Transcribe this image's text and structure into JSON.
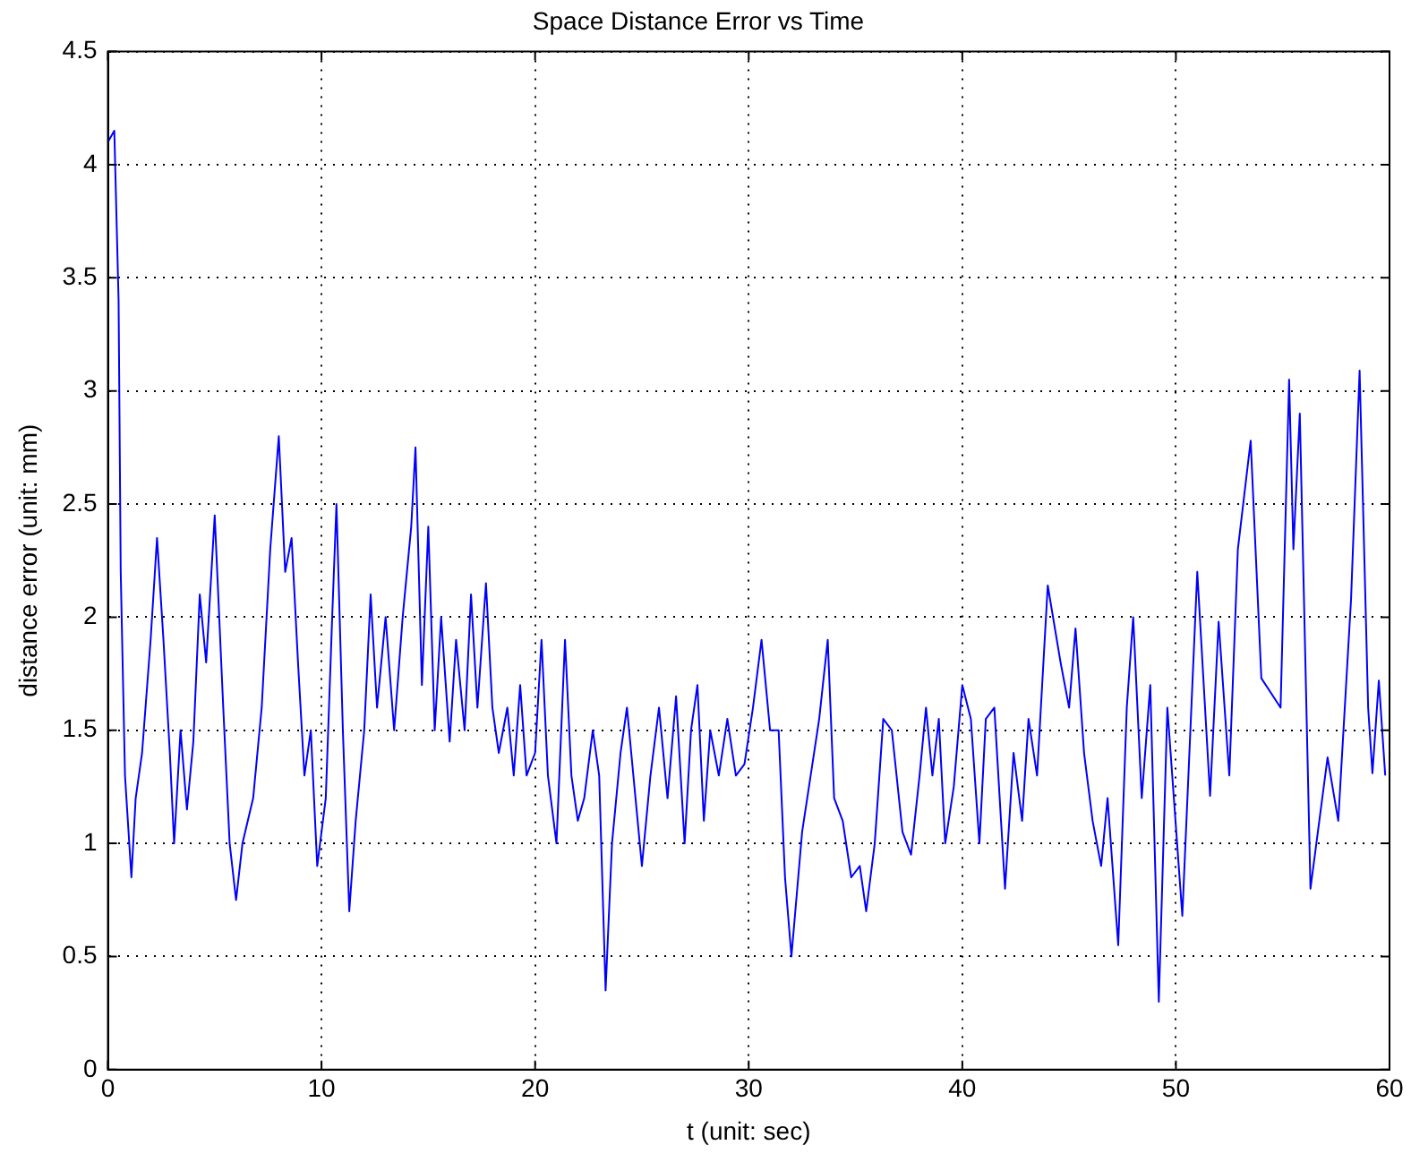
{
  "chart_data": {
    "type": "line",
    "title": "Space Distance Error vs Time",
    "xlabel": "t (unit: sec)",
    "ylabel": "distance error (unit: mm)",
    "xlim": [
      0,
      60
    ],
    "xticks": [
      0,
      10,
      20,
      30,
      40,
      50,
      60
    ],
    "ylim": [
      0,
      4.5
    ],
    "yticks": [
      0,
      0.5,
      1,
      1.5,
      2,
      2.5,
      3,
      3.5,
      4,
      4.5
    ],
    "grid": true,
    "marker": "none",
    "line_style": "solid",
    "series": [
      {
        "color": "#0000ff",
        "x": [
          0,
          0.3,
          0.5,
          0.6,
          0.8,
          1.1,
          1.3,
          1.6,
          2.0,
          2.3,
          2.6,
          2.9,
          3.1,
          3.4,
          3.7,
          4.0,
          4.3,
          4.6,
          5.0,
          5.4,
          5.7,
          6.0,
          6.3,
          6.8,
          7.2,
          7.6,
          8.0,
          8.3,
          8.6,
          8.9,
          9.2,
          9.5,
          9.8,
          10.2,
          10.5,
          10.7,
          11.0,
          11.3,
          11.6,
          12.0,
          12.3,
          12.6,
          13.0,
          13.4,
          13.8,
          14.2,
          14.4,
          14.7,
          15.0,
          15.3,
          15.6,
          16.0,
          16.3,
          16.7,
          17.0,
          17.3,
          17.7,
          18.0,
          18.3,
          18.7,
          19.0,
          19.3,
          19.6,
          20.0,
          20.3,
          20.6,
          21.0,
          21.4,
          21.7,
          22.0,
          22.3,
          22.7,
          23.0,
          23.3,
          23.6,
          24.0,
          24.3,
          24.6,
          25.0,
          25.4,
          25.8,
          26.2,
          26.6,
          27.0,
          27.3,
          27.6,
          27.9,
          28.2,
          28.6,
          29.0,
          29.4,
          29.8,
          30.2,
          30.6,
          31.0,
          31.4,
          31.7,
          32.0,
          32.5,
          32.9,
          33.3,
          33.7,
          34.0,
          34.4,
          34.8,
          35.2,
          35.5,
          35.9,
          36.3,
          36.7,
          37.2,
          37.6,
          38.0,
          38.3,
          38.6,
          38.9,
          39.2,
          39.6,
          40.0,
          40.4,
          40.8,
          41.1,
          41.5,
          42.0,
          42.4,
          42.8,
          43.1,
          43.5,
          44.0,
          44.6,
          45.0,
          45.3,
          45.7,
          46.1,
          46.5,
          46.8,
          47.3,
          47.7,
          48.0,
          48.4,
          48.8,
          49.2,
          49.6,
          50.3,
          51.0,
          51.6,
          52.0,
          52.5,
          52.9,
          53.5,
          54.0,
          54.9,
          55.3,
          55.5,
          55.8,
          56.3,
          57.1,
          57.6,
          58.2,
          58.6,
          59.0,
          59.2,
          59.5,
          59.8
        ],
        "values": [
          4.1,
          4.15,
          3.4,
          2.2,
          1.3,
          0.85,
          1.2,
          1.4,
          1.9,
          2.35,
          1.9,
          1.4,
          1.0,
          1.5,
          1.15,
          1.45,
          2.1,
          1.8,
          2.45,
          1.6,
          1.0,
          0.75,
          1.0,
          1.2,
          1.6,
          2.3,
          2.8,
          2.2,
          2.35,
          1.8,
          1.3,
          1.5,
          0.9,
          1.2,
          2.0,
          2.5,
          1.5,
          0.7,
          1.1,
          1.5,
          2.1,
          1.6,
          2.0,
          1.5,
          2.0,
          2.4,
          2.75,
          1.7,
          2.4,
          1.5,
          2.0,
          1.45,
          1.9,
          1.5,
          2.1,
          1.6,
          2.15,
          1.6,
          1.4,
          1.6,
          1.3,
          1.7,
          1.3,
          1.4,
          1.9,
          1.3,
          1.0,
          1.9,
          1.3,
          1.1,
          1.2,
          1.5,
          1.3,
          0.35,
          1.0,
          1.4,
          1.6,
          1.3,
          0.9,
          1.3,
          1.6,
          1.2,
          1.65,
          1.0,
          1.5,
          1.7,
          1.1,
          1.5,
          1.3,
          1.55,
          1.3,
          1.35,
          1.6,
          1.9,
          1.5,
          1.5,
          0.85,
          0.5,
          1.05,
          1.3,
          1.55,
          1.9,
          1.2,
          1.1,
          0.85,
          0.9,
          0.7,
          1.0,
          1.55,
          1.5,
          1.05,
          0.95,
          1.3,
          1.6,
          1.3,
          1.55,
          1.0,
          1.25,
          1.7,
          1.55,
          1.0,
          1.55,
          1.6,
          0.8,
          1.4,
          1.1,
          1.55,
          1.3,
          2.14,
          1.8,
          1.6,
          1.95,
          1.4,
          1.1,
          0.9,
          1.2,
          0.55,
          1.6,
          2.0,
          1.2,
          1.7,
          0.3,
          1.6,
          0.68,
          2.2,
          1.21,
          1.98,
          1.3,
          2.3,
          2.78,
          1.73,
          1.6,
          3.05,
          2.3,
          2.9,
          0.8,
          1.38,
          1.1,
          2.08,
          3.09,
          1.6,
          1.31,
          1.72,
          1.3
        ]
      }
    ]
  }
}
